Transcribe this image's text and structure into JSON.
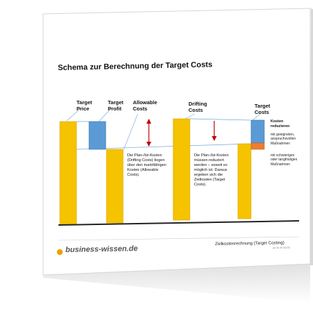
{
  "document": {
    "title": "Schema zur Berechnung der Target Costs",
    "footer_brand": "business-wissen.de",
    "footer_caption": "Zielkostenrechnung (Target Costing)",
    "footer_ref": "art.-Nr. 56 018 09"
  },
  "diagram": {
    "labels": {
      "target_price": "Target\nPrice",
      "target_profit": "Target\nProfit",
      "allowable_costs": "Allowable\nCosts",
      "drifting_costs": "Drifting\nCosts",
      "target_costs": "Target\nCosts"
    },
    "notes": {
      "allowable_note": "Die Plan-/Ist-Kosten (Drifting Costs) liegen über den marktfähigen Kosten (Allowable Costs).",
      "drifting_note": "Die Plan-/Ist-Kosten müssen reduziert werden – soweit es möglich ist. Daraus ergeben sich die Zielkosten (Target Costs)."
    },
    "side": {
      "heading": "Kosten reduzieren",
      "blue_text": "mit geeigneten, anspruchsvollen Maßnahmen",
      "orange_text": "mit schwierigen oder langfristigen Maßnahmen"
    },
    "colors": {
      "yellow": "#f5c300",
      "yellow_edge": "#d9a800",
      "blue": "#5b9bd5",
      "blue_edge": "#2f6fa8",
      "orange": "#ed7d31",
      "arrow_red": "#c00000",
      "guide_blue": "#6fa8dc",
      "baseline": "#222222",
      "brand_dot": "#f0a000"
    }
  }
}
